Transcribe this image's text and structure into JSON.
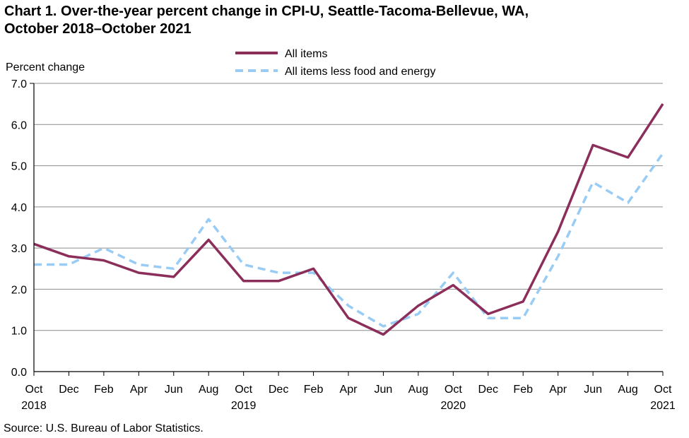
{
  "chart_data": {
    "type": "line",
    "title_line1": "Chart 1. Over-the-year percent change in CPI-U, Seattle-Tacoma-Bellevue,  WA,",
    "title_line2": "October 2018–October 2021",
    "ylabel": "Percent change",
    "ylim": [
      0,
      7
    ],
    "yticks": [
      "0.0",
      "1.0",
      "2.0",
      "3.0",
      "4.0",
      "5.0",
      "6.0",
      "7.0"
    ],
    "grid": "horizontal",
    "legend_position": "top-center",
    "x": [
      "Oct 2018",
      "Dec 2018",
      "Feb 2019",
      "Apr 2019",
      "Jun 2019",
      "Aug 2019",
      "Oct 2019",
      "Dec 2019",
      "Feb 2020",
      "Apr 2020",
      "Jun 2020",
      "Aug 2020",
      "Oct 2020",
      "Dec 2020",
      "Feb 2021",
      "Apr 2021",
      "Jun 2021",
      "Aug 2021",
      "Oct 2021"
    ],
    "xtick_months": [
      "Oct",
      "Dec",
      "Feb",
      "Apr",
      "Jun",
      "Aug",
      "Oct",
      "Dec",
      "Feb",
      "Apr",
      "Jun",
      "Aug",
      "Oct",
      "Dec",
      "Feb",
      "Apr",
      "Jun",
      "Aug",
      "Oct"
    ],
    "xtick_years": [
      {
        "index": 0,
        "label": "2018"
      },
      {
        "index": 6,
        "label": "2019"
      },
      {
        "index": 12,
        "label": "2020"
      },
      {
        "index": 18,
        "label": "2021"
      }
    ],
    "series": [
      {
        "name": "All items",
        "color": "#8B2E5A",
        "style": "solid",
        "values": [
          3.1,
          2.8,
          2.7,
          2.4,
          2.3,
          3.2,
          2.2,
          2.2,
          2.5,
          1.3,
          0.9,
          1.6,
          2.1,
          1.4,
          1.7,
          3.4,
          5.5,
          5.2,
          6.5
        ]
      },
      {
        "name": "All items less food and energy",
        "color": "#99CCF5",
        "style": "dashed",
        "values": [
          2.6,
          2.6,
          3.0,
          2.6,
          2.5,
          3.7,
          2.6,
          2.4,
          2.4,
          1.6,
          1.1,
          1.4,
          2.4,
          1.3,
          1.3,
          2.8,
          4.6,
          4.1,
          5.3
        ]
      }
    ]
  },
  "source": "Source: U.S. Bureau of Labor Statistics."
}
